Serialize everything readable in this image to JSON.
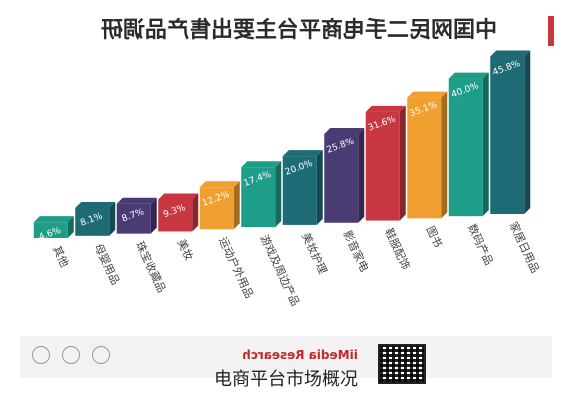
{
  "chart_data": {
    "type": "bar",
    "title": "中国网民二手电商平台主要出售产品调研",
    "categories": [
      "其他",
      "母婴用品",
      "珠宝收藏品",
      "美妆",
      "运动户外用品",
      "游戏及周边产品",
      "美妆护理",
      "影音家电",
      "鞋服配饰",
      "图书",
      "数码产品",
      "家居日用品"
    ],
    "values": [
      4.6,
      8.1,
      8.7,
      9.3,
      12.2,
      17.4,
      20.0,
      25.8,
      31.6,
      35.1,
      40.0,
      45.8
    ],
    "value_labels": [
      "4.6%",
      "8.1%",
      "8.7%",
      "9.3%",
      "12.2%",
      "17.4%",
      "20.0%",
      "25.8%",
      "31.6%",
      "35.1%",
      "40.0%",
      "45.8%"
    ],
    "colors": [
      "#1e9e89",
      "#1d6b75",
      "#4a3b73",
      "#c8373f",
      "#f0a030",
      "#1e9e89",
      "#1d6b75",
      "#4a3b73",
      "#c8373f",
      "#f0a030",
      "#1e9e89",
      "#1d6b75"
    ],
    "ylim": [
      0,
      50
    ],
    "grid": false,
    "legend": "none",
    "xlabel": "",
    "ylabel": ""
  },
  "colors": {
    "title_accent": "#c8373f",
    "footer_background": "#f2f2f2"
  },
  "footer": {
    "source_name": "iiMedia Research",
    "icons": [
      "copyright-icon",
      "person-icon",
      "cc-icon"
    ]
  },
  "caption": "电商平台市场概况"
}
